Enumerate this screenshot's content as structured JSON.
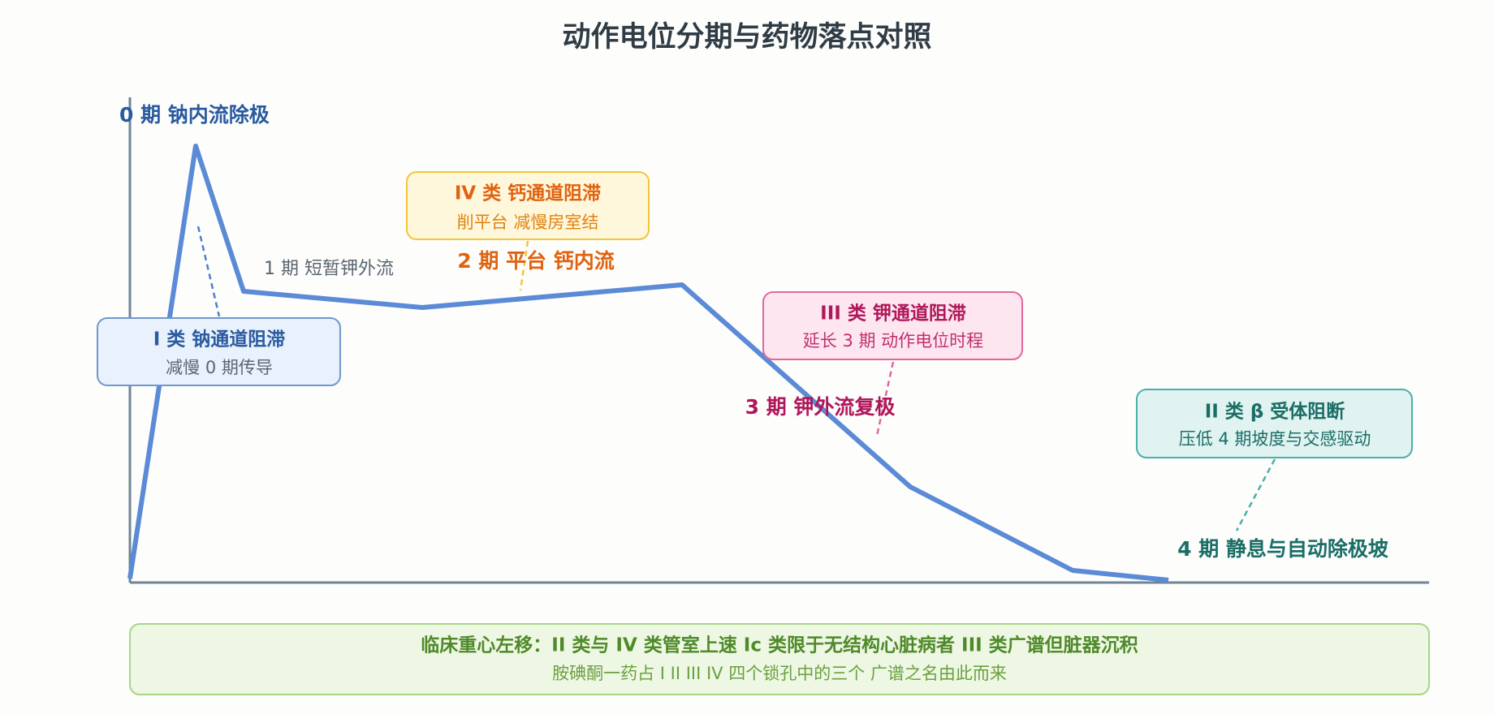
{
  "header": {
    "title": "动作电位分期与药物落点对照"
  },
  "phases": [
    {
      "label": "0 期 钠内流除极"
    },
    {
      "label": "1 期 短暂钾外流"
    },
    {
      "label": "2 期 平台 钙内流"
    },
    {
      "label": "3 期 钾外流复极"
    },
    {
      "label": "4 期 静息与自动除极坡"
    }
  ],
  "drug_classes": [
    {
      "title": "I 类 钠通道阻滞",
      "subtitle": "减慢 0 期传导"
    },
    {
      "title": "IV 类 钙通道阻滞",
      "subtitle": "削平台 减慢房室结"
    },
    {
      "title": "III 类 钾通道阻滞",
      "subtitle": "延长 3 期 动作电位时程"
    },
    {
      "title": "II 类 β 受体阻断",
      "subtitle": "压低 4 期坡度与交感驱动"
    }
  ],
  "footer": {
    "title": "临床重心左移：II 类与 IV 类管室上速 Ic 类限于无结构心脏病者 III 类广谱但脏器沉积",
    "subtitle": "胺碘酮一药占 I II III IV 四个锁孔中的三个 广谱之名由此而来"
  }
}
